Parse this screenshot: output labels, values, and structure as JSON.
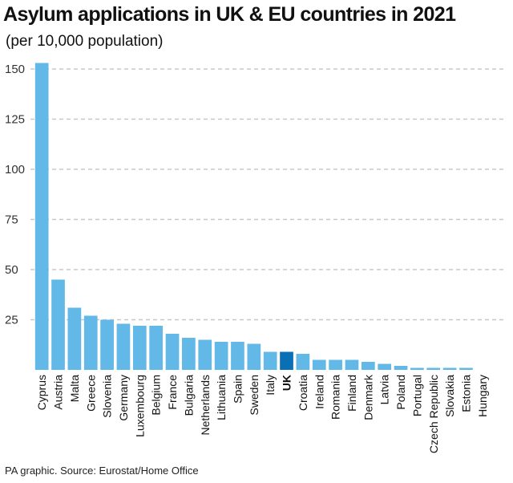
{
  "title": "Asylum applications in UK & EU countries in 2021",
  "subtitle": "(per 10,000 population)",
  "source": "PA graphic. Source: Eurostat/Home Office",
  "colors": {
    "bar": "#62b8e6",
    "highlight": "#0a6fb4",
    "grid": "#c8c8c8"
  },
  "chart_data": {
    "type": "bar",
    "title": "Asylum applications in UK & EU countries in 2021",
    "subtitle": "(per 10,000 population)",
    "xlabel": "",
    "ylabel": "",
    "ylim": [
      0,
      150
    ],
    "yticks": [
      25,
      50,
      75,
      100,
      125,
      150
    ],
    "grid": true,
    "categories": [
      "Cyprus",
      "Austria",
      "Malta",
      "Greece",
      "Slovenia",
      "Germany",
      "Luxembourg",
      "Belgium",
      "France",
      "Bulgaria",
      "Netherlands",
      "Lithuania",
      "Spain",
      "Sweden",
      "Italy",
      "UK",
      "Croatia",
      "Ireland",
      "Romania",
      "Finland",
      "Denmark",
      "Latvia",
      "Poland",
      "Portugal",
      "Czech Republic",
      "Slovakia",
      "Estonia",
      "Hungary"
    ],
    "values": [
      153,
      45,
      31,
      27,
      25,
      23,
      22,
      22,
      18,
      16,
      15,
      14,
      14,
      13,
      9,
      9,
      8,
      5,
      5,
      5,
      4,
      3,
      2,
      1,
      1,
      1,
      1,
      0
    ],
    "highlight": "UK"
  }
}
